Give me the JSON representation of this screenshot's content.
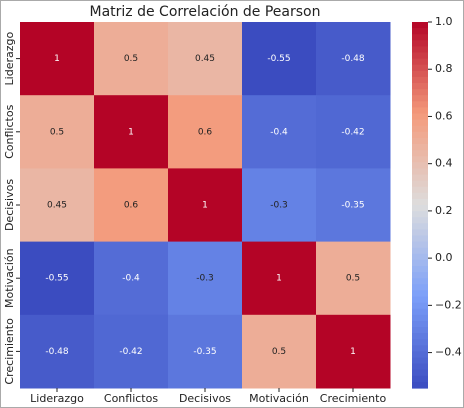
{
  "chart_data": {
    "type": "heatmap",
    "title": "Matriz de Correlación de Pearson",
    "x_categories": [
      "Liderazgo",
      "Conflictos",
      "Decisivos",
      "Motivación",
      "Crecimiento"
    ],
    "y_categories": [
      "Liderazgo",
      "Conflictos",
      "Decisivos",
      "Motivación",
      "Crecimiento"
    ],
    "values": [
      [
        1,
        0.5,
        0.45,
        -0.55,
        -0.48
      ],
      [
        0.5,
        1,
        0.6,
        -0.4,
        -0.42
      ],
      [
        0.45,
        0.6,
        1,
        -0.3,
        -0.35
      ],
      [
        -0.55,
        -0.4,
        -0.3,
        1,
        0.5
      ],
      [
        -0.48,
        -0.42,
        -0.35,
        0.5,
        1
      ]
    ],
    "colormap": "coolwarm",
    "clim": [
      -0.55,
      1
    ],
    "cticks": [
      {
        "value": 1,
        "label": "1.0"
      },
      0.8,
      0.6,
      0.4,
      0.2,
      {
        "value": 0,
        "label": "0.0"
      },
      {
        "value": -0.2,
        "label": "−0.2"
      },
      {
        "value": -0.4,
        "label": "−0.4"
      }
    ]
  }
}
